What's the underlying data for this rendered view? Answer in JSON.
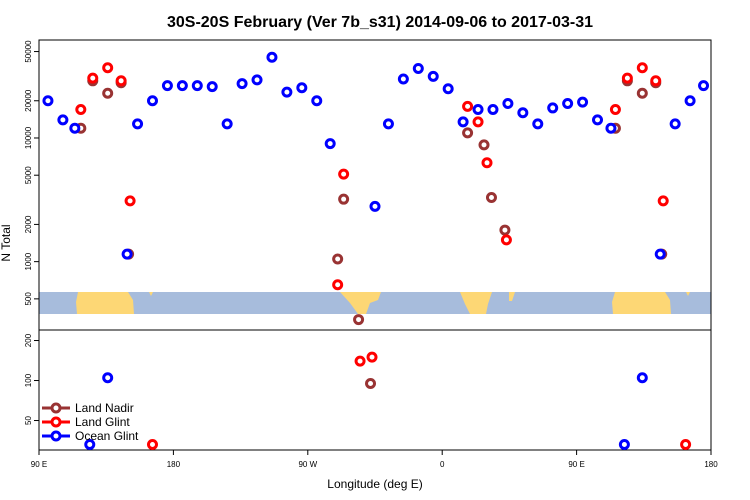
{
  "chart_data": {
    "type": "scatter",
    "title": "30S-20S February (Ver 7b_s31)   2014-09-06 to 2017-03-31",
    "xlabel": "Longitude (deg E)",
    "ylabel": "N Total",
    "x_ticks": [
      {
        "value": 90,
        "label": "90 E"
      },
      {
        "value": 180,
        "label": "180"
      },
      {
        "value": 270,
        "label": "90 W"
      },
      {
        "value": 360,
        "label": "0"
      },
      {
        "value": 450,
        "label": "90 E"
      },
      {
        "value": 540,
        "label": "180"
      }
    ],
    "xlim": [
      90,
      540
    ],
    "upper_panel": {
      "scale": "log",
      "ylim": [
        280,
        62000
      ],
      "y_ticks": [
        {
          "value": 500,
          "label": "500"
        },
        {
          "value": 1000,
          "label": "1000"
        },
        {
          "value": 2000,
          "label": "2000"
        },
        {
          "value": 5000,
          "label": "5000"
        },
        {
          "value": 10000,
          "label": "10000"
        },
        {
          "value": 20000,
          "label": "20000"
        },
        {
          "value": 50000,
          "label": "50000"
        }
      ]
    },
    "lower_panel": {
      "scale": "log",
      "ylim": [
        30,
        240
      ],
      "y_ticks": [
        {
          "value": 50,
          "label": "50"
        },
        {
          "value": 100,
          "label": "100"
        },
        {
          "value": 200,
          "label": "200"
        }
      ]
    },
    "series": [
      {
        "name": "Land Nadir",
        "color": "#993333",
        "upper": [
          {
            "x": 118,
            "y": 12000
          },
          {
            "x": 126,
            "y": 29000
          },
          {
            "x": 136,
            "y": 23000
          },
          {
            "x": 145,
            "y": 28000
          },
          {
            "x": 150,
            "y": 1150
          },
          {
            "x": 290,
            "y": 1050
          },
          {
            "x": 294,
            "y": 3200
          },
          {
            "x": 304,
            "y": 340
          },
          {
            "x": 377,
            "y": 11000
          },
          {
            "x": 388,
            "y": 8800
          },
          {
            "x": 393,
            "y": 3300
          },
          {
            "x": 402,
            "y": 1800
          },
          {
            "x": 476,
            "y": 12000
          },
          {
            "x": 484,
            "y": 29000
          },
          {
            "x": 494,
            "y": 23000
          },
          {
            "x": 503,
            "y": 28000
          },
          {
            "x": 507,
            "y": 1150
          }
        ],
        "lower": [
          {
            "x": 312,
            "y": 95
          }
        ]
      },
      {
        "name": "Land Glint",
        "color": "#ff0000",
        "upper": [
          {
            "x": 118,
            "y": 17000
          },
          {
            "x": 126,
            "y": 30500
          },
          {
            "x": 136,
            "y": 37000
          },
          {
            "x": 145,
            "y": 29000
          },
          {
            "x": 151,
            "y": 3100
          },
          {
            "x": 290,
            "y": 650
          },
          {
            "x": 294,
            "y": 5100
          },
          {
            "x": 377,
            "y": 18000
          },
          {
            "x": 384,
            "y": 13500
          },
          {
            "x": 390,
            "y": 6300
          },
          {
            "x": 403,
            "y": 1500
          },
          {
            "x": 476,
            "y": 17000
          },
          {
            "x": 484,
            "y": 30500
          },
          {
            "x": 494,
            "y": 37000
          },
          {
            "x": 503,
            "y": 29000
          },
          {
            "x": 508,
            "y": 3100
          }
        ],
        "lower": [
          {
            "x": 166,
            "y": 33
          },
          {
            "x": 305,
            "y": 140
          },
          {
            "x": 313,
            "y": 150
          },
          {
            "x": 523,
            "y": 33
          }
        ]
      },
      {
        "name": "Ocean Glint",
        "color": "#0000ff",
        "upper": [
          {
            "x": 96,
            "y": 20000
          },
          {
            "x": 106,
            "y": 14000
          },
          {
            "x": 114,
            "y": 12000
          },
          {
            "x": 149,
            "y": 1150
          },
          {
            "x": 156,
            "y": 13000
          },
          {
            "x": 166,
            "y": 20000
          },
          {
            "x": 176,
            "y": 26500
          },
          {
            "x": 186,
            "y": 26500
          },
          {
            "x": 196,
            "y": 26500
          },
          {
            "x": 206,
            "y": 26000
          },
          {
            "x": 216,
            "y": 13000
          },
          {
            "x": 226,
            "y": 27500
          },
          {
            "x": 236,
            "y": 29500
          },
          {
            "x": 246,
            "y": 45000
          },
          {
            "x": 256,
            "y": 23500
          },
          {
            "x": 266,
            "y": 25500
          },
          {
            "x": 276,
            "y": 20000
          },
          {
            "x": 285,
            "y": 9000
          },
          {
            "x": 315,
            "y": 2800
          },
          {
            "x": 324,
            "y": 13000
          },
          {
            "x": 334,
            "y": 30000
          },
          {
            "x": 344,
            "y": 36500
          },
          {
            "x": 354,
            "y": 31500
          },
          {
            "x": 364,
            "y": 25000
          },
          {
            "x": 374,
            "y": 13500
          },
          {
            "x": 384,
            "y": 17000
          },
          {
            "x": 394,
            "y": 17000
          },
          {
            "x": 404,
            "y": 19000
          },
          {
            "x": 414,
            "y": 16000
          },
          {
            "x": 424,
            "y": 13000
          },
          {
            "x": 434,
            "y": 17500
          },
          {
            "x": 444,
            "y": 19000
          },
          {
            "x": 454,
            "y": 19500
          },
          {
            "x": 464,
            "y": 14000
          },
          {
            "x": 473,
            "y": 12000
          },
          {
            "x": 506,
            "y": 1150
          },
          {
            "x": 516,
            "y": 13000
          },
          {
            "x": 526,
            "y": 20000
          },
          {
            "x": 535,
            "y": 26500
          }
        ],
        "lower": [
          {
            "x": 124,
            "y": 33
          },
          {
            "x": 136,
            "y": 105
          },
          {
            "x": 482,
            "y": 33
          },
          {
            "x": 494,
            "y": 105
          }
        ]
      }
    ]
  }
}
